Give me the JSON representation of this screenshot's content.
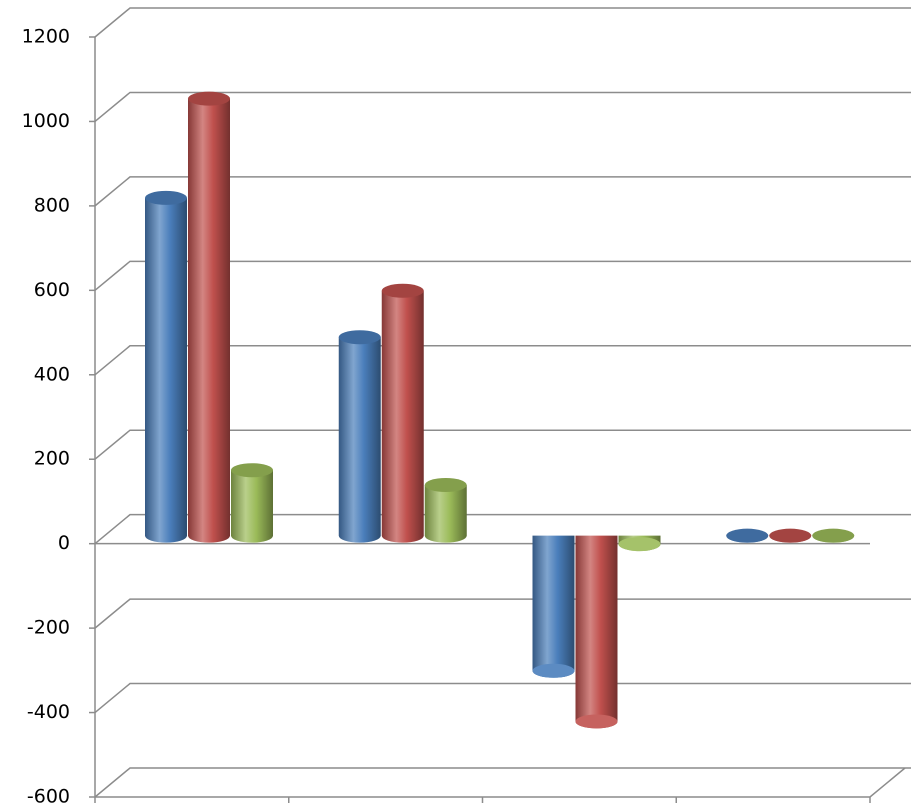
{
  "chart_data": {
    "type": "bar3d",
    "categories": [
      null,
      null,
      null,
      null
    ],
    "series": [
      {
        "color": "#4a7ebb",
        "values": [
          800,
          470,
          -320,
          0
        ]
      },
      {
        "color": "#c0504d",
        "values": [
          1035,
          580,
          -440,
          0
        ]
      },
      {
        "color": "#9bbb59",
        "values": [
          155,
          120,
          -20,
          0
        ]
      }
    ],
    "ylim": [
      -600,
      1200
    ],
    "yticks": [
      -600,
      -400,
      -200,
      0,
      200,
      400,
      600,
      800,
      1000,
      1200
    ],
    "grid": true
  }
}
